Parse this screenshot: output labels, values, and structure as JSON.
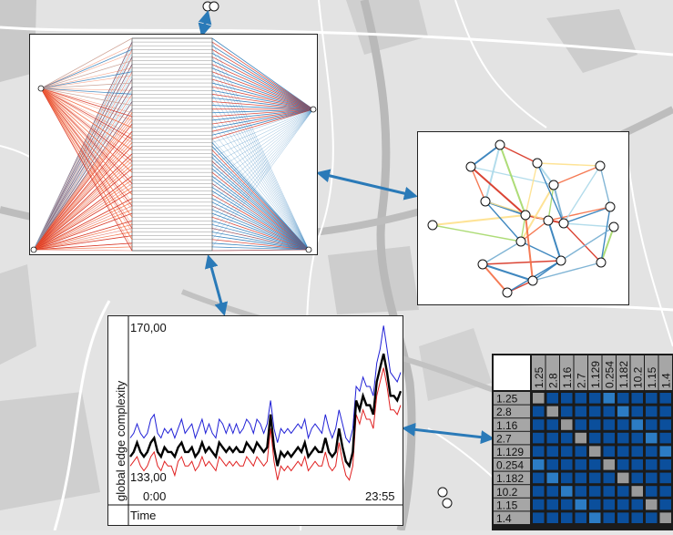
{
  "map": {
    "background": "#e3e3e3",
    "road_color": "#ffffff",
    "highway_color": "#bdbdbd"
  },
  "colors": {
    "link_arrow": "#2a7ab8",
    "edge_blue": "#2b7bb9",
    "edge_red": "#d7301f",
    "edge_orange": "#f46d43",
    "edge_lightblue": "#abd9e9",
    "cell_dark": "#0b4f9c",
    "cell_mid": "#2c7cc4",
    "cell_diag": "#9a9a9a"
  },
  "timeseries": {
    "ylabel": "global edge complexity",
    "y_max_label": "170,00",
    "y_min_label": "133,00",
    "x_start_label": "0:00",
    "x_end_label": "23:55",
    "footer_label": "Time"
  },
  "chart_data": {
    "type": "line",
    "title": "",
    "xlabel": "Time",
    "ylabel": "global edge complexity",
    "x_range": [
      "0:00",
      "23:55"
    ],
    "ylim": [
      133,
      170
    ],
    "series": [
      {
        "color": "#000000",
        "values": [
          140,
          141,
          143,
          141,
          140,
          141,
          143,
          144,
          141,
          140,
          142,
          141,
          141,
          140,
          142,
          143,
          141,
          141,
          142,
          140,
          141,
          143,
          141,
          142,
          141,
          140,
          143,
          142,
          141,
          142,
          141,
          142,
          141,
          141,
          143,
          142,
          141,
          143,
          142,
          141,
          142,
          149,
          142,
          138,
          141,
          140,
          141,
          140,
          141,
          142,
          141,
          143,
          140,
          141,
          142,
          141,
          141,
          144,
          141,
          140,
          141,
          146,
          142,
          139,
          138,
          141,
          152,
          150,
          153,
          151,
          151,
          149,
          156,
          159,
          162,
          158,
          153,
          153,
          152,
          154
        ]
      },
      {
        "color": "#1f1fd6",
        "values": [
          144,
          145,
          147,
          145,
          144,
          145,
          148,
          149,
          145,
          144,
          146,
          145,
          146,
          144,
          146,
          148,
          145,
          146,
          147,
          144,
          146,
          148,
          145,
          147,
          145,
          144,
          148,
          147,
          145,
          147,
          145,
          147,
          145,
          146,
          148,
          147,
          145,
          148,
          147,
          145,
          147,
          152,
          146,
          143,
          146,
          145,
          146,
          145,
          146,
          147,
          146,
          148,
          144,
          146,
          147,
          146,
          145,
          149,
          146,
          144,
          146,
          150,
          147,
          144,
          143,
          146,
          155,
          154,
          157,
          155,
          155,
          153,
          160,
          163,
          168,
          163,
          158,
          157,
          156,
          158
        ]
      },
      {
        "color": "#e02020",
        "values": [
          138,
          139,
          140,
          138,
          137,
          138,
          140,
          141,
          138,
          137,
          139,
          138,
          138,
          136,
          139,
          140,
          138,
          138,
          139,
          137,
          138,
          140,
          138,
          139,
          138,
          137,
          140,
          139,
          138,
          139,
          138,
          139,
          138,
          138,
          140,
          139,
          138,
          140,
          139,
          138,
          139,
          146,
          139,
          135,
          138,
          137,
          138,
          137,
          138,
          139,
          138,
          140,
          137,
          138,
          139,
          138,
          138,
          141,
          138,
          137,
          138,
          143,
          139,
          136,
          135,
          138,
          149,
          147,
          150,
          148,
          148,
          146,
          153,
          156,
          159,
          155,
          150,
          150,
          149,
          151
        ]
      }
    ]
  },
  "matrix": {
    "labels": [
      "1.25",
      "2.8",
      "1.16",
      "2.7",
      "1.129",
      "0.254",
      "1.182",
      "10.2",
      "1.15",
      "1.4"
    ]
  }
}
